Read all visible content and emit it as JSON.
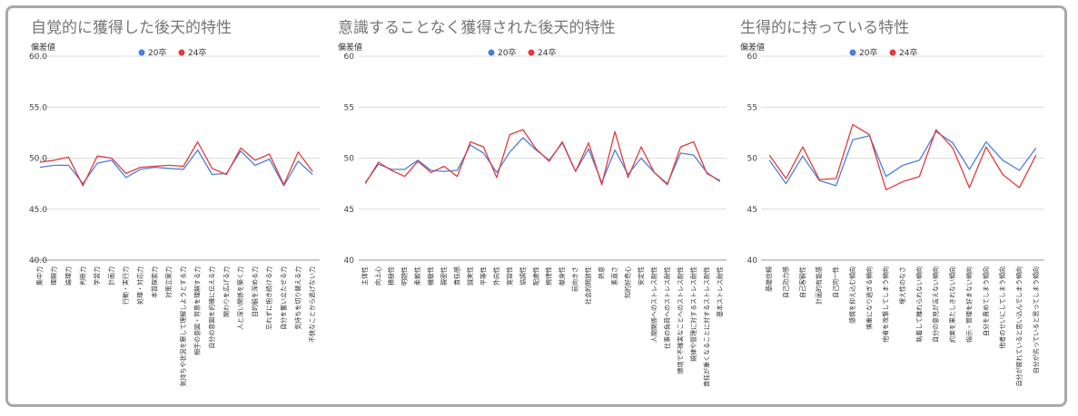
{
  "chart_data": [
    {
      "type": "line",
      "title": "自覚的に獲得した後天的特性",
      "ylabel": "偏差値",
      "ylim": [
        40,
        60
      ],
      "yticks": [
        "40.0",
        "45.0",
        "50.0",
        "55.0",
        "60.0"
      ],
      "legend_position": "top",
      "grid": true,
      "categories": [
        "集中力",
        "理解力",
        "論理力",
        "判断力",
        "学習力",
        "計画力",
        "行動・実行力",
        "処理・対応力",
        "本質探索力",
        "対策立案力",
        "気持ちや状況を察して理解しようとする力",
        "相手の意図・背景を理解する力",
        "自分の意図を的確に伝える力",
        "関わりを広げる力",
        "人と深い関係を築く力",
        "目的観を深める力",
        "忘れずに抱き続ける力",
        "自分を奮い立たせる力",
        "気持ちを切り替える力",
        "不快なことから逃げない力"
      ],
      "series": [
        {
          "name": "20卒",
          "color": "#4a7fe0",
          "values": [
            49.1,
            49.3,
            49.3,
            47.5,
            49.5,
            49.8,
            48.1,
            48.9,
            49.1,
            49.0,
            48.9,
            50.8,
            48.4,
            48.5,
            50.7,
            49.3,
            49.9,
            47.3,
            49.7,
            48.4
          ]
        },
        {
          "name": "24卒",
          "color": "#e23b3b",
          "values": [
            49.6,
            49.8,
            50.1,
            47.3,
            50.2,
            50.0,
            48.5,
            49.1,
            49.2,
            49.3,
            49.2,
            51.6,
            49.0,
            48.4,
            51.0,
            49.8,
            50.4,
            47.4,
            50.6,
            48.7
          ]
        }
      ]
    },
    {
      "type": "line",
      "title": "意識することなく獲得された後天的特性",
      "ylabel": "偏差値",
      "ylim": [
        40,
        60
      ],
      "yticks": [
        "40",
        "45",
        "50",
        "55",
        "60"
      ],
      "legend_position": "top",
      "grid": true,
      "categories": [
        "主体性",
        "向上心",
        "積極性",
        "明朗性",
        "柔軟性",
        "機敏性",
        "親密性",
        "責任感",
        "誠実性",
        "平等性",
        "外向性",
        "寛容性",
        "協調性",
        "配慮性",
        "規律性",
        "献身性",
        "前向きさ",
        "社会的開放性",
        "熱意",
        "素直さ",
        "知的好奇心",
        "安定性",
        "人間関係へのストレス耐性",
        "仕事の負荷へのストレス耐性",
        "環境で不確実なことへのストレス耐性",
        "規律や管理に対するストレス耐性",
        "責任が重くなることに対するストレス耐性",
        "基本ストレス耐性"
      ],
      "series": [
        {
          "name": "20卒",
          "color": "#4a7fe0",
          "values": [
            47.6,
            49.4,
            48.9,
            48.9,
            49.8,
            48.8,
            48.7,
            48.8,
            51.3,
            50.5,
            48.6,
            50.6,
            52.0,
            50.8,
            49.8,
            51.5,
            48.7,
            50.9,
            47.6,
            50.8,
            48.4,
            50.0,
            48.6,
            47.5,
            50.5,
            50.3,
            48.6,
            47.7
          ]
        },
        {
          "name": "24卒",
          "color": "#e23b3b",
          "values": [
            47.5,
            49.6,
            48.8,
            48.2,
            49.7,
            48.6,
            49.2,
            48.2,
            51.6,
            51.1,
            48.1,
            52.3,
            52.8,
            50.9,
            49.7,
            51.6,
            48.7,
            51.5,
            47.4,
            52.6,
            48.1,
            51.1,
            48.6,
            47.4,
            51.1,
            51.6,
            48.5,
            47.8
          ]
        }
      ]
    },
    {
      "type": "line",
      "title": "生得的に持っている特性",
      "ylabel": "偏差値",
      "ylim": [
        40,
        60
      ],
      "yticks": [
        "40",
        "45",
        "50",
        "55",
        "60"
      ],
      "legend_position": "top",
      "grid": true,
      "categories": [
        "基礎信頼",
        "自己効力感",
        "自己客観性",
        "計画的有能感",
        "自己同一性",
        "感情を抑え込む傾向",
        "慎重になり過ぎる傾向",
        "他者を攻撃してしまう傾向",
        "埋え性のなさ",
        "執着して離れられない傾向",
        "自分の意見が言えない傾向",
        "約束を果たしきれない傾向",
        "指示・管理を好まない傾向",
        "自分を責めてしまう傾向",
        "他者のせいにしてしまう傾向",
        "自分が疲れていると思い込んでしまう傾向",
        "自分が劣っていると思ってしまう傾向"
      ],
      "series": [
        {
          "name": "20卒",
          "color": "#4a7fe0",
          "values": [
            49.8,
            47.5,
            50.2,
            47.8,
            47.3,
            51.8,
            52.2,
            48.2,
            49.3,
            49.8,
            52.6,
            51.5,
            48.9,
            51.6,
            49.8,
            48.8,
            51.0
          ]
        },
        {
          "name": "24卒",
          "color": "#e23b3b",
          "values": [
            50.3,
            48.0,
            51.1,
            47.9,
            48.0,
            53.3,
            52.3,
            46.9,
            47.7,
            48.2,
            52.8,
            51.0,
            47.1,
            51.1,
            48.4,
            47.1,
            50.3
          ]
        }
      ]
    }
  ]
}
